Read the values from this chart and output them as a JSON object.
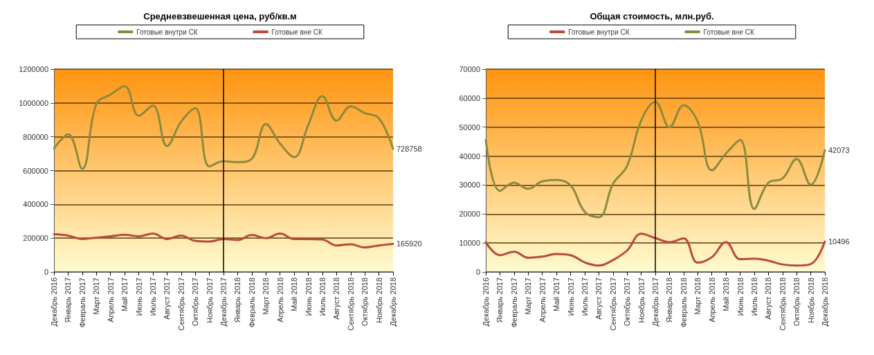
{
  "chart_data": [
    {
      "type": "line",
      "title": "Средневзвешенная цена, руб/кв.м",
      "categories": [
        "Декабрь 2016",
        "Январь 2017",
        "Февраль 2017",
        "Март 2017",
        "Апрель 2017",
        "Май 2017",
        "Июнь 2017",
        "Июль 2017",
        "Август 2017",
        "Сентябрь 2017",
        "Октябрь 2017",
        "Ноябрь 2017",
        "Декабрь 2017",
        "Январь 2018",
        "Февраль 2018",
        "Март 2018",
        "Апрель 2018",
        "Май 2018",
        "Июнь 2018",
        "Июль 2018",
        "Август 2018",
        "Сентябрь 2018",
        "Октябрь 2018",
        "Ноябрь 2018",
        "Декабрь 2018"
      ],
      "series": [
        {
          "name": "Готовые внутри СК",
          "color": "#8c8a3e",
          "values": [
            730000,
            815000,
            610000,
            995000,
            1050000,
            1100000,
            925000,
            985000,
            745000,
            890000,
            970000,
            625000,
            655000,
            650000,
            670000,
            875000,
            760000,
            680000,
            870000,
            1040000,
            895000,
            980000,
            940000,
            910000,
            728758
          ],
          "value_labels": [
            null,
            null,
            null,
            null,
            null,
            null,
            null,
            null,
            null,
            null,
            null,
            null,
            null,
            null,
            null,
            null,
            null,
            null,
            null,
            null,
            null,
            null,
            null,
            null,
            "728758"
          ]
        },
        {
          "name": "Готовые вне СК",
          "color": "#b94a3a",
          "values": [
            223000,
            215000,
            195000,
            203000,
            211000,
            220000,
            211000,
            227000,
            195000,
            215000,
            184000,
            180000,
            195000,
            189000,
            219000,
            200000,
            227000,
            195000,
            195000,
            192000,
            157000,
            164000,
            145000,
            157000,
            165920
          ],
          "value_labels": [
            null,
            null,
            null,
            null,
            null,
            null,
            null,
            null,
            null,
            null,
            null,
            null,
            null,
            null,
            null,
            null,
            null,
            null,
            null,
            null,
            null,
            null,
            null,
            null,
            "165920"
          ]
        }
      ],
      "ylim": [
        0,
        1200000
      ],
      "yticks": [
        0,
        200000,
        400000,
        600000,
        800000,
        1000000,
        1200000
      ],
      "grid": "y",
      "legend": "top",
      "marker": "none",
      "ref_lines": [
        {
          "axis": "x",
          "value": "Декабрь 2017",
          "label": null,
          "color": "#000000"
        }
      ]
    },
    {
      "type": "line",
      "title": "Общая стоимость, млн.руб.",
      "categories": [
        "Декабрь 2016",
        "Январь 2017",
        "Февраль 2017",
        "Март 2017",
        "Апрель 2017",
        "Май 2017",
        "Июнь 2017",
        "Июль 2017",
        "Август 2017",
        "Сентябрь 2017",
        "Октябрь 2017",
        "Ноябрь 2017",
        "Декабрь 2017",
        "Январь 2018",
        "Февраль 2018",
        "Март 2018",
        "Апрель 2018",
        "Май 2018",
        "Июнь 2018",
        "Июль 2018",
        "Август 2018",
        "Сентябрь 2018",
        "Октябрь 2018",
        "Ноябрь 2018",
        "Декабрь 2018"
      ],
      "series": [
        {
          "name": "Готовые внутри СК",
          "color": "#b94a3a",
          "values": [
            10300,
            5800,
            7000,
            4900,
            5300,
            6200,
            5800,
            3300,
            2200,
            4100,
            7400,
            13200,
            11700,
            10300,
            11600,
            3200,
            5100,
            10300,
            4400,
            4600,
            3900,
            2600,
            2200,
            2700,
            10496
          ],
          "value_labels": [
            null,
            null,
            null,
            null,
            null,
            null,
            null,
            null,
            null,
            null,
            null,
            null,
            null,
            null,
            null,
            null,
            null,
            null,
            null,
            null,
            null,
            null,
            null,
            null,
            "10496"
          ]
        },
        {
          "name": "Готовые вне СК",
          "color": "#8c8a3e",
          "values": [
            45600,
            28000,
            30800,
            28700,
            31300,
            31800,
            29900,
            20800,
            18900,
            30400,
            36600,
            52300,
            58700,
            50000,
            57600,
            51900,
            35100,
            40900,
            45600,
            21800,
            30800,
            32300,
            39000,
            30100,
            42073
          ],
          "value_labels": [
            null,
            null,
            null,
            null,
            null,
            null,
            null,
            null,
            null,
            null,
            null,
            null,
            null,
            null,
            null,
            null,
            null,
            null,
            null,
            null,
            null,
            null,
            null,
            null,
            "42073"
          ]
        }
      ],
      "ylim": [
        0,
        70000
      ],
      "yticks": [
        0,
        10000,
        20000,
        30000,
        40000,
        50000,
        60000,
        70000
      ],
      "grid": "y",
      "legend": "top",
      "marker": "none",
      "ref_lines": [
        {
          "axis": "x",
          "value": "Декабрь 2017",
          "label": null,
          "color": "#000000"
        }
      ]
    }
  ]
}
